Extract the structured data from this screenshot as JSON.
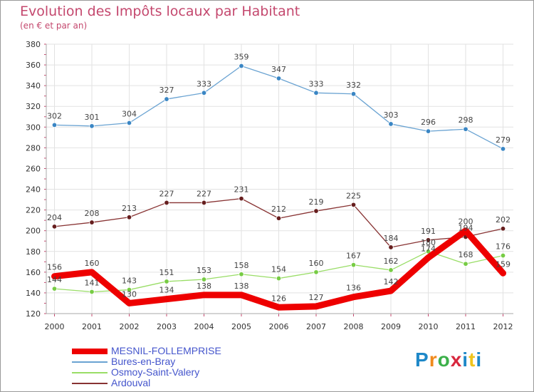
{
  "chart_data": {
    "type": "line",
    "title": "Evolution des Impôts locaux par Habitant",
    "subtitle": "(en € et par an)",
    "xlabel": "",
    "ylabel": "",
    "ylim": [
      120,
      380
    ],
    "yticks": [
      120,
      140,
      160,
      180,
      200,
      220,
      240,
      260,
      280,
      300,
      320,
      340,
      360,
      380
    ],
    "x": [
      2000,
      2001,
      2002,
      2003,
      2004,
      2005,
      2006,
      2007,
      2008,
      2009,
      2010,
      2011,
      2012
    ],
    "grid": true,
    "series": [
      {
        "name": "MESNIL-FOLLEMPRISE",
        "color": "#ee0000",
        "point_color": "#ee0000",
        "values": [
          156,
          160,
          130,
          134,
          138,
          138,
          126,
          127,
          136,
          142,
          174,
          200,
          159
        ]
      },
      {
        "name": "Bures-en-Bray",
        "color": "#6aa3d2",
        "point_color": "#3a86c4",
        "values": [
          302,
          301,
          304,
          327,
          333,
          359,
          347,
          333,
          332,
          303,
          296,
          298,
          279
        ]
      },
      {
        "name": "Osmoy-Saint-Valery",
        "color": "#99dd66",
        "point_color": "#77cc44",
        "values": [
          144,
          141,
          143,
          151,
          153,
          158,
          154,
          160,
          167,
          162,
          180,
          168,
          176
        ]
      },
      {
        "name": "Ardouval",
        "color": "#883333",
        "point_color": "#661e1e",
        "values": [
          204,
          208,
          213,
          227,
          227,
          231,
          212,
          219,
          225,
          184,
          191,
          194,
          202
        ]
      }
    ]
  },
  "logo": {
    "letters": [
      "P",
      "r",
      "o",
      "x",
      "i",
      "t",
      "i"
    ]
  }
}
